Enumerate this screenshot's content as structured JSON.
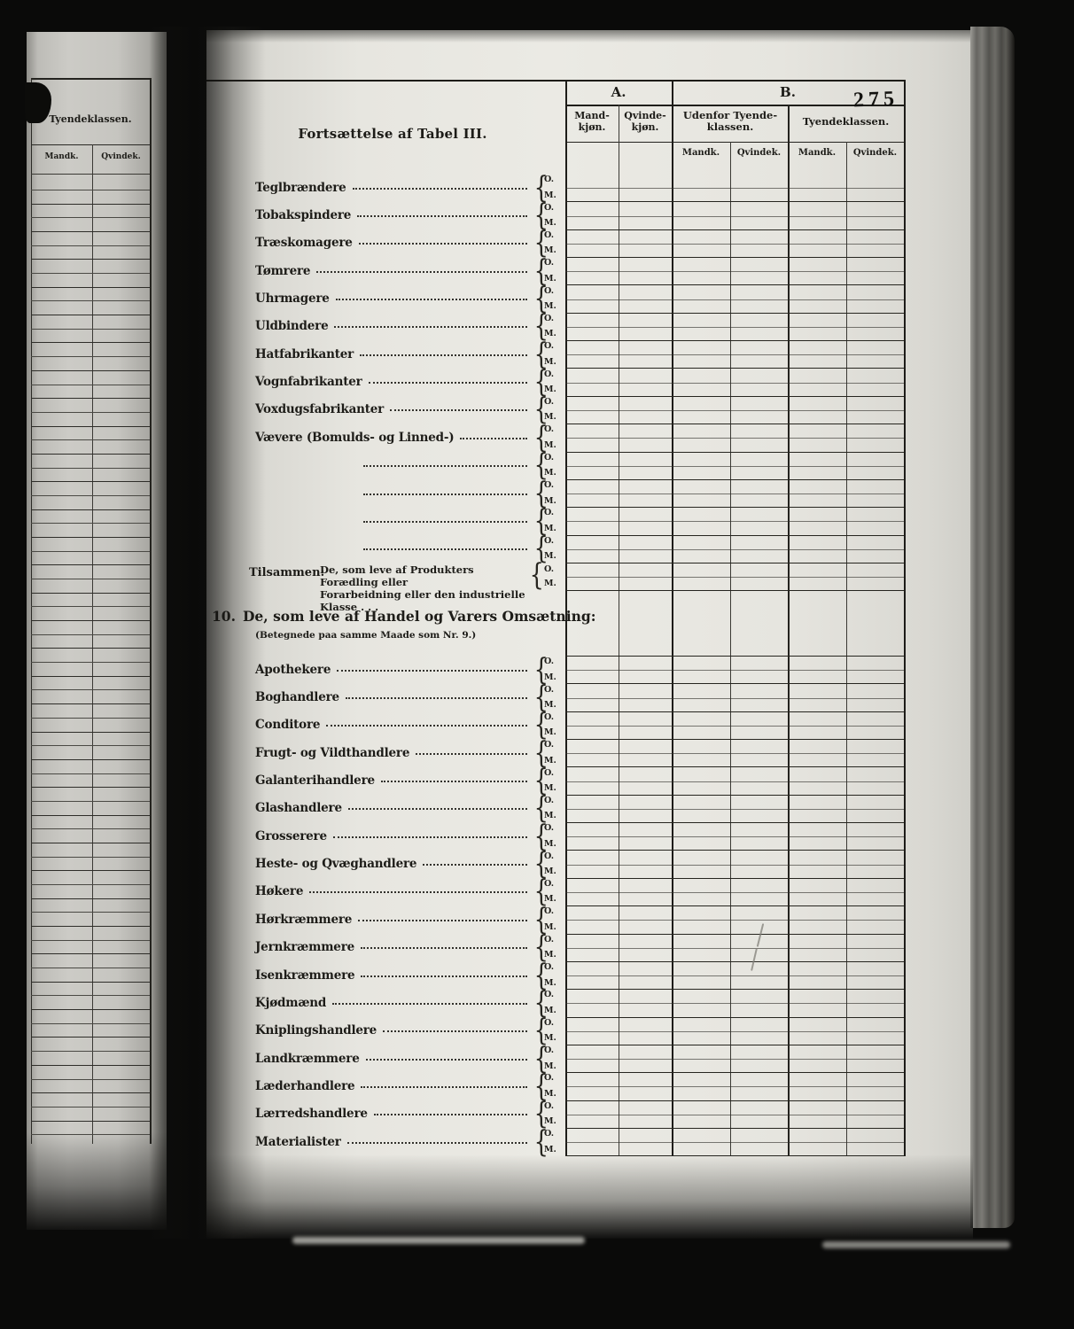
{
  "page_number": "275",
  "colors": {
    "background": "#0a0a09",
    "paper": "#e7e6e0",
    "left_paper": "#c9c8c2",
    "ink": "#1d1c18"
  },
  "left_page": {
    "header": "Tyendeklassen.",
    "subheaders": [
      "Mandk.",
      "Qvindek."
    ]
  },
  "main": {
    "title": "Fortsættelse af Tabel III.",
    "header": {
      "group_a": "A.",
      "group_b": "B.",
      "a_cols": [
        "Mand- kjøn.",
        "Qvinde- kjøn."
      ],
      "b_groups": [
        "Udenfor Tyende- klassen.",
        "Tyendeklassen."
      ],
      "b_subcols": [
        "Mandk.",
        "Qvindek.",
        "Mandk.",
        "Qvindek."
      ]
    },
    "row_markers": {
      "brace": "{",
      "top": "O.",
      "bottom": "M."
    },
    "section9_rows": [
      "Teglbrændere",
      "Tobakspindere",
      "Træskomagere",
      "Tømrere",
      "Uhrmagere",
      "Uldbindere",
      "Hatfabrikanter",
      "Vognfabrikanter",
      "Voxdugsfabrikanter",
      "Vævere (Bomulds- og Linned-)"
    ],
    "blank_row_count": 4,
    "total_row": {
      "label": "Tilsammen:",
      "line1": "De, som leve af Produkters Forædling eller",
      "line2": "Forarbeidning eller den industrielle Klasse . . ."
    },
    "section10": {
      "number": "10.",
      "heading": "De, som leve af Handel og Varers Omsætning:",
      "note": "(Betegnede paa samme Maade som Nr. 9.)"
    },
    "section10_rows": [
      "Apothekere",
      "Boghandlere",
      "Conditore",
      "Frugt- og Vildthandlere",
      "Galanterihandlere",
      "Glashandlere",
      "Grosserere",
      "Heste- og Qvæghandlere",
      "Høkere",
      "Hørkræmmere",
      "Jernkræmmere",
      "Isenkræmmere",
      "Kjødmænd",
      "Kniplingshandlere",
      "Landkræmmere",
      "Læderhandlere",
      "Lærredshandlere",
      "Materialister"
    ]
  }
}
